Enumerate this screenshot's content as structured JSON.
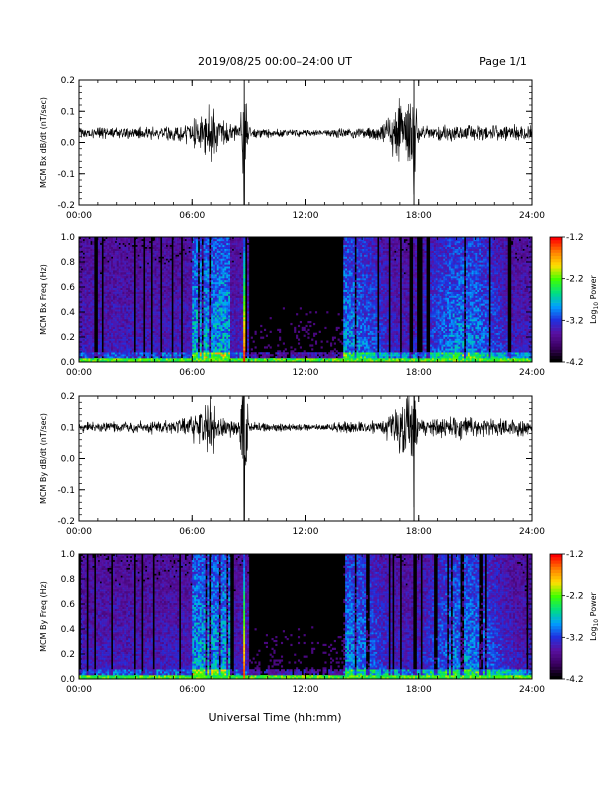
{
  "header": {
    "title": "2019/08/25  00:00–24:00 UT",
    "page": "Page 1/1"
  },
  "xlabel": "Universal Time (hh:mm)",
  "x_ticks": [
    "00:00",
    "06:00",
    "12:00",
    "18:00",
    "24:00"
  ],
  "colorbar": {
    "label": "Log",
    "label_sub": "10",
    "label_suffix": " Power",
    "ticks": [
      "-1.2",
      "-2.2",
      "-3.2",
      "-4.2"
    ],
    "range": [
      -4.2,
      -1.2
    ],
    "colormap": [
      "#000000",
      "#3a0060",
      "#5a10a0",
      "#2030e0",
      "#00a0ff",
      "#00e080",
      "#40ff00",
      "#ffe000",
      "#ff8000",
      "#ff0000"
    ]
  },
  "chart_data": [
    {
      "type": "line",
      "ylabel": "MCM Bx dB/dt (nT/sec)",
      "xlim": [
        0,
        24
      ],
      "ylim": [
        -0.2,
        0.2
      ],
      "y_ticks": [
        "0.2",
        "0.1",
        "0.0",
        "-0.1",
        "-0.2"
      ],
      "baseline": 0.03,
      "series": [
        {
          "x": [
            0,
            2,
            4,
            5.5,
            6.5,
            7,
            7.5,
            8.5,
            8.75,
            9,
            11,
            13,
            14,
            16,
            17.75,
            18,
            20,
            22,
            24
          ],
          "amplitude": [
            0.02,
            0.02,
            0.025,
            0.03,
            0.07,
            0.12,
            0.05,
            0.03,
            0.25,
            0.02,
            0.015,
            0.012,
            0.02,
            0.025,
            0.2,
            0.03,
            0.035,
            0.03,
            0.03
          ]
        }
      ]
    },
    {
      "type": "heatmap",
      "ylabel": "MCM Bx Freq (Hz)",
      "xlim": [
        0,
        24
      ],
      "ylim": [
        0.0,
        1.0
      ],
      "y_ticks": [
        "1.0",
        "0.8",
        "0.6",
        "0.4",
        "0.2",
        "0.0"
      ],
      "spike_hours": [
        8.75
      ],
      "active_intervals": [
        [
          0,
          8.5
        ],
        [
          6,
          8
        ],
        [
          14,
          24
        ]
      ]
    },
    {
      "type": "line",
      "ylabel": "MCM By dB/dt (nT/sec)",
      "xlim": [
        0,
        24
      ],
      "ylim": [
        -0.2,
        0.2
      ],
      "y_ticks": [
        "0.2",
        "0.1",
        "0.0",
        "-0.1",
        "-0.2"
      ],
      "baseline": 0.1,
      "series": [
        {
          "x": [
            0,
            2,
            4,
            5.5,
            6.5,
            7,
            7.5,
            8.5,
            8.75,
            9,
            11,
            13,
            14,
            16,
            17.75,
            18,
            20,
            22,
            24
          ],
          "amplitude": [
            0.02,
            0.02,
            0.025,
            0.03,
            0.08,
            0.13,
            0.05,
            0.03,
            0.3,
            0.02,
            0.015,
            0.012,
            0.02,
            0.025,
            0.16,
            0.03,
            0.045,
            0.035,
            0.03
          ]
        }
      ]
    },
    {
      "type": "heatmap",
      "ylabel": "MCM By Freq (Hz)",
      "xlim": [
        0,
        24
      ],
      "ylim": [
        0.0,
        1.0
      ],
      "y_ticks": [
        "1.0",
        "0.8",
        "0.6",
        "0.4",
        "0.2",
        "0.0"
      ],
      "spike_hours": [
        8.75
      ],
      "active_intervals": [
        [
          0,
          8.5
        ],
        [
          6,
          8
        ],
        [
          14,
          24
        ]
      ]
    }
  ]
}
